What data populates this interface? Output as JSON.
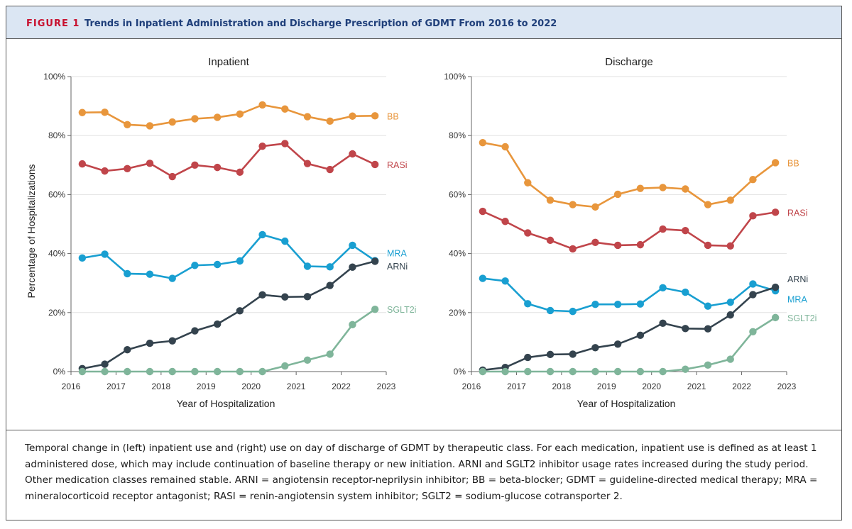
{
  "header": {
    "figure_label": "FIGURE 1",
    "title": "Trends in Inpatient Administration and Discharge Prescription of GDMT From 2016 to 2022"
  },
  "caption": "Temporal change in (left) inpatient use and (right) use on day of discharge of GDMT by therapeutic class. For each medication, inpatient use is defined as at least 1 administered dose, which may include continuation of baseline therapy or new initiation. ARNI and SGLT2 inhibitor usage rates increased during the study period. Other medication classes remained stable. ARNI = angiotensin receptor-neprilysin inhibitor; BB = beta-blocker; GDMT = guideline-directed medical therapy; MRA = mineralocorticoid receptor antagonist; RASI = renin-angiotensin system inhibitor; SGLT2 = sodium-glucose cotransporter 2.",
  "colors": {
    "BB": "#e8963c",
    "RASi": "#c0454a",
    "MRA": "#199fd1",
    "ARNi": "#34434e",
    "SGLT2i": "#7fb59a",
    "axis": "#666666",
    "grid": "#e2e2e2"
  },
  "chart_data": [
    {
      "type": "line",
      "title": "Inpatient",
      "xlabel": "Year of Hospitalization",
      "ylabel": "Percentage of Hospitalizations",
      "xlim": [
        2016,
        2023
      ],
      "ylim": [
        0,
        100
      ],
      "xticks": [
        "2016",
        "2017",
        "2018",
        "2019",
        "2020",
        "2021",
        "2022",
        "2023"
      ],
      "yticks": [
        "0%",
        "20%",
        "40%",
        "60%",
        "80%",
        "100%"
      ],
      "grid": "horizontal",
      "x": [
        2016.25,
        2016.75,
        2017.25,
        2017.75,
        2018.25,
        2018.75,
        2019.25,
        2019.75,
        2020.25,
        2020.75,
        2021.25,
        2021.75,
        2022.25,
        2022.75
      ],
      "series": [
        {
          "name": "BB",
          "values": [
            87.8,
            87.9,
            83.7,
            83.3,
            84.6,
            85.7,
            86.2,
            87.3,
            90.4,
            89.0,
            86.4,
            84.9,
            86.6,
            86.7
          ]
        },
        {
          "name": "RASi",
          "values": [
            70.4,
            68.0,
            68.8,
            70.6,
            66.1,
            70.0,
            69.2,
            67.6,
            76.4,
            77.3,
            70.5,
            68.5,
            73.8,
            70.2
          ]
        },
        {
          "name": "MRA",
          "values": [
            38.5,
            39.8,
            33.2,
            33.0,
            31.6,
            36.0,
            36.3,
            37.5,
            46.4,
            44.2,
            35.7,
            35.5,
            42.8,
            37.6
          ]
        },
        {
          "name": "ARNi",
          "values": [
            1.0,
            2.5,
            7.4,
            9.6,
            10.4,
            13.8,
            16.1,
            20.6,
            26.0,
            25.3,
            25.4,
            29.2,
            35.4,
            37.4
          ]
        },
        {
          "name": "SGLT2i",
          "values": [
            0,
            0,
            0,
            0,
            0,
            0,
            0,
            0,
            0,
            1.9,
            3.9,
            5.9,
            15.9,
            21.1
          ]
        }
      ]
    },
    {
      "type": "line",
      "title": "Discharge",
      "xlabel": "Year of Hospitalization",
      "ylabel": "",
      "xlim": [
        2016,
        2023
      ],
      "ylim": [
        0,
        100
      ],
      "xticks": [
        "2016",
        "2017",
        "2018",
        "2019",
        "2020",
        "2021",
        "2022",
        "2023"
      ],
      "yticks": [
        "0%",
        "20%",
        "40%",
        "60%",
        "80%",
        "100%"
      ],
      "grid": "horizontal",
      "x": [
        2016.25,
        2016.75,
        2017.25,
        2017.75,
        2018.25,
        2018.75,
        2019.25,
        2019.75,
        2020.25,
        2020.75,
        2021.25,
        2021.75,
        2022.25,
        2022.75
      ],
      "series": [
        {
          "name": "BB",
          "values": [
            77.6,
            76.2,
            64.0,
            58.1,
            56.6,
            55.8,
            60.1,
            62.1,
            62.4,
            61.9,
            56.6,
            58.1,
            65.1,
            70.8
          ]
        },
        {
          "name": "RASi",
          "values": [
            54.3,
            50.9,
            47.0,
            44.5,
            41.6,
            43.8,
            42.8,
            43.0,
            48.3,
            47.8,
            42.8,
            42.6,
            52.8,
            54.0
          ]
        },
        {
          "name": "MRA",
          "values": [
            31.6,
            30.7,
            23.0,
            20.7,
            20.4,
            22.8,
            22.8,
            22.9,
            28.4,
            26.9,
            22.2,
            23.5,
            29.7,
            27.4
          ]
        },
        {
          "name": "ARNi",
          "values": [
            0.5,
            1.4,
            4.8,
            5.8,
            5.9,
            8.1,
            9.3,
            12.3,
            16.4,
            14.6,
            14.5,
            19.2,
            26.1,
            28.6
          ]
        },
        {
          "name": "SGLT2i",
          "values": [
            0,
            0,
            0,
            0,
            0,
            0,
            0,
            0,
            0,
            0.8,
            2.2,
            4.2,
            13.5,
            18.3
          ]
        }
      ]
    }
  ]
}
